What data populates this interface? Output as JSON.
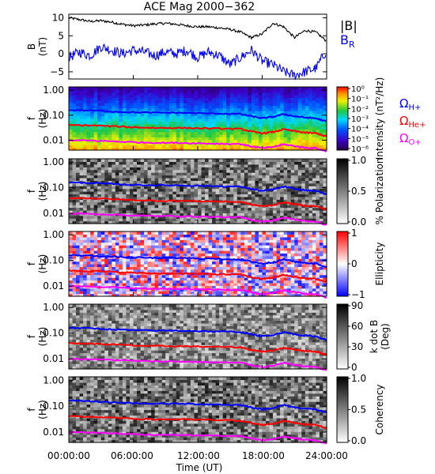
{
  "chart_data": {
    "type": "line",
    "title": "ACE Mag 2000−362",
    "xlabel": "Time (UT)",
    "x_ticks": [
      "00:00:00",
      "06:00:00",
      "12:00:00",
      "18:00:00",
      "24:00:00"
    ],
    "x_range_hours": [
      0,
      24
    ],
    "panels": [
      {
        "id": "b-field",
        "ylabel": "B\n(nT)",
        "ylim": [
          -7,
          11
        ],
        "y_ticks": [
          "10",
          "5",
          "0",
          "−5"
        ],
        "legend": [
          "|B|",
          "B_R"
        ],
        "series": [
          {
            "name": "|B|",
            "color": "#000000",
            "x": [
              0,
              1,
              2,
              3,
              4,
              5,
              6,
              7,
              8,
              9,
              10,
              11,
              12,
              13,
              14,
              15,
              16,
              17,
              18,
              19,
              20,
              21,
              22,
              23,
              24
            ],
            "y": [
              10,
              9.5,
              9,
              9.2,
              8.8,
              8.2,
              7.8,
              8.0,
              8.3,
              8.5,
              8.2,
              7.8,
              7.5,
              7.5,
              7.2,
              6.8,
              6.0,
              4.5,
              5.5,
              8.5,
              7.5,
              4.5,
              6.5,
              6.0,
              3.5
            ]
          },
          {
            "name": "B_R",
            "color": "#0000ff",
            "x": [
              0,
              1,
              2,
              3,
              4,
              5,
              6,
              7,
              8,
              9,
              10,
              11,
              12,
              13,
              14,
              15,
              16,
              17,
              18,
              19,
              20,
              21,
              22,
              23,
              24
            ],
            "y": [
              -1,
              0.5,
              -0.5,
              2,
              1,
              0,
              1,
              0.5,
              -0.5,
              0.5,
              0,
              1,
              -1,
              0.5,
              -0.5,
              -3,
              -1,
              1,
              -2,
              -3,
              -5,
              -6,
              -5,
              -4,
              1
            ]
          }
        ]
      },
      {
        "id": "intensity",
        "ylabel": "f\n(Hz)",
        "y_ticks": [
          "1.00",
          "0.10",
          "0.01"
        ],
        "colorbar_label": "Intensity (nT²/Hz)",
        "colorbar_ticks": [
          "10⁰",
          "10⁻¹",
          "10⁻²",
          "10⁻³",
          "10⁻⁴",
          "10⁻⁵",
          "10⁻⁶"
        ],
        "colormap": "rainbow",
        "legend": [
          "ΩH+",
          "ΩHe+",
          "ΩO+"
        ]
      },
      {
        "id": "polarization",
        "ylabel": "f\n(Hz)",
        "y_ticks": [
          "1.00",
          "0.10",
          "0.01"
        ],
        "colorbar_label": "% Polarization",
        "colorbar_ticks": [
          "1.0",
          "0.5",
          "0.0"
        ],
        "colormap": "grayscale"
      },
      {
        "id": "ellipticity",
        "ylabel": "f\n(Hz)",
        "y_ticks": [
          "1.00",
          "0.10",
          "0.01"
        ],
        "colorbar_label": "Ellipticity",
        "colorbar_ticks": [
          "1",
          "0",
          "−1"
        ],
        "colormap": "blue-white-red"
      },
      {
        "id": "kdotb",
        "ylabel": "f\n(Hz)",
        "y_ticks": [
          "1.00",
          "0.10",
          "0.01"
        ],
        "colorbar_label": "k dot B\n(Deg)",
        "colorbar_ticks": [
          "90",
          "60",
          "30",
          "0"
        ],
        "colormap": "grayscale"
      },
      {
        "id": "coherency",
        "ylabel": "f\n(Hz)",
        "y_ticks": [
          "1.00",
          "0.10",
          "0.01"
        ],
        "colorbar_label": "Coherency",
        "colorbar_ticks": [
          "1.0",
          "0.5",
          "0.0"
        ],
        "colormap": "grayscale"
      }
    ],
    "gyrofrequency_lines": [
      {
        "name": "ΩH+",
        "color": "#0000ff",
        "x": [
          0,
          2,
          4,
          6,
          8,
          10,
          12,
          14,
          16,
          17,
          18,
          19,
          20,
          21,
          22,
          23,
          24
        ],
        "f_hz": [
          0.16,
          0.155,
          0.14,
          0.13,
          0.125,
          0.125,
          0.12,
          0.115,
          0.11,
          0.09,
          0.075,
          0.085,
          0.11,
          0.09,
          0.08,
          0.075,
          0.055
        ]
      },
      {
        "name": "ΩHe+",
        "color": "#ff0000",
        "x": [
          0,
          2,
          4,
          6,
          8,
          10,
          12,
          14,
          16,
          17,
          18,
          19,
          20,
          21,
          22,
          23,
          24
        ],
        "f_hz": [
          0.04,
          0.039,
          0.036,
          0.033,
          0.031,
          0.031,
          0.03,
          0.029,
          0.028,
          0.022,
          0.019,
          0.021,
          0.027,
          0.023,
          0.02,
          0.019,
          0.014
        ]
      },
      {
        "name": "ΩO+",
        "color": "#ff00ff",
        "x": [
          0,
          2,
          4,
          6,
          8,
          10,
          12,
          14,
          16,
          17,
          18,
          19,
          20,
          21,
          22,
          23,
          24
        ],
        "f_hz": [
          0.0098,
          0.0096,
          0.009,
          0.0083,
          0.0079,
          0.0078,
          0.0075,
          0.0072,
          0.007,
          0.0056,
          0.0048,
          0.0053,
          0.0068,
          0.0058,
          0.005,
          0.0048,
          0.0035
        ]
      }
    ]
  }
}
